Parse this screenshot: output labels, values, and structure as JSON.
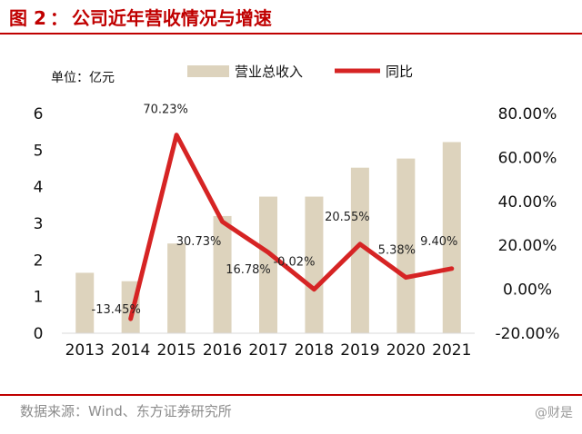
{
  "figure": {
    "title_prefix": "图 2",
    "title_sep": "：",
    "title": "公司近年营收情况与增速",
    "source_label": "数据来源：",
    "source": "Wind、东方证券研究所",
    "watermark": "@财是"
  },
  "colors": {
    "accent": "#c00000",
    "bar": "#ddd3bd",
    "line": "#d62424",
    "text": "#111111",
    "muted": "#8c8c8c"
  },
  "chart_data": {
    "type": "bar+line",
    "title": "公司近年营收情况与增速",
    "unit_label": "单位：亿元",
    "categories": [
      "2013",
      "2014",
      "2015",
      "2016",
      "2017",
      "2018",
      "2019",
      "2020",
      "2021"
    ],
    "series": [
      {
        "name": "营业总收入",
        "type": "bar",
        "axis": "left",
        "values": [
          1.65,
          1.42,
          2.45,
          3.2,
          3.73,
          3.73,
          4.52,
          4.77,
          5.22
        ]
      },
      {
        "name": "同比",
        "type": "line",
        "axis": "right",
        "values": [
          null,
          -13.45,
          70.23,
          30.73,
          16.78,
          -0.02,
          20.55,
          5.38,
          9.4
        ],
        "labels": [
          "",
          "-13.45%",
          "70.23%",
          "30.73%",
          "16.78%",
          "-0.02%",
          "20.55%",
          "5.38%",
          "9.40%"
        ]
      }
    ],
    "left_axis": {
      "ylim": [
        0,
        6
      ],
      "ticks": [
        "0",
        "1",
        "2",
        "3",
        "4",
        "5",
        "6"
      ]
    },
    "right_axis": {
      "ylim": [
        -20,
        80
      ],
      "ticks": [
        "-20.00%",
        "0.00%",
        "20.00%",
        "40.00%",
        "60.00%",
        "80.00%"
      ]
    },
    "legend": {
      "placement": "top-center",
      "items": [
        "营业总收入",
        "同比"
      ]
    },
    "grid": false
  }
}
